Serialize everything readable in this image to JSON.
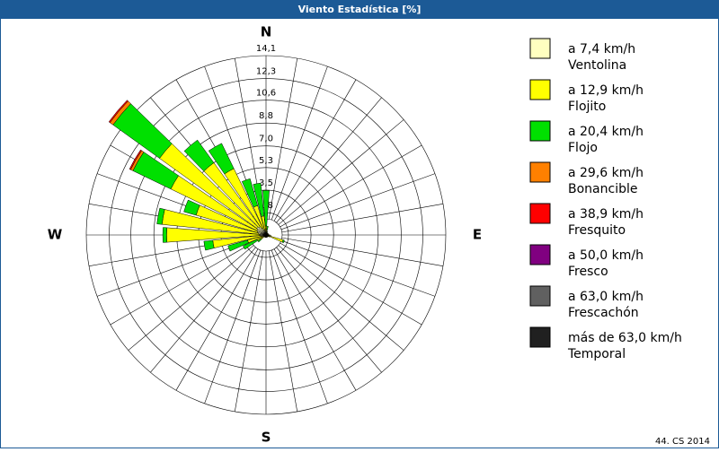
{
  "chart_data": {
    "type": "windrose",
    "title": "Viento Estadística [%]",
    "footer": "44. CS 2014",
    "categories": [
      "N",
      null,
      null,
      null,
      null,
      null,
      null,
      null,
      null,
      "E",
      null,
      null,
      null,
      null,
      null,
      null,
      null,
      null,
      "S",
      null,
      null,
      null,
      null,
      null,
      null,
      null,
      null,
      "W",
      null,
      null,
      null,
      null,
      null,
      null,
      null,
      null
    ],
    "rlim": [
      0,
      14.1
    ],
    "rticks": [
      {
        "value": 1.76,
        "label": "1,8"
      },
      {
        "value": 3.53,
        "label": "3,5"
      },
      {
        "value": 5.3,
        "label": "5,3"
      },
      {
        "value": 7.0,
        "label": "7,0"
      },
      {
        "value": 8.8,
        "label": "8,8"
      },
      {
        "value": 10.6,
        "label": "10,6"
      },
      {
        "value": 12.3,
        "label": "12,3"
      },
      {
        "value": 14.1,
        "label": "14,1"
      }
    ],
    "series": [
      {
        "name": "a 7,4 km/h",
        "description": "Ventolina",
        "color": "#ffffc0",
        "values": [
          0.2,
          0.1,
          0.1,
          0.1,
          0.1,
          0.1,
          0.1,
          0.1,
          0.1,
          0.1,
          0.1,
          0.2,
          0.1,
          0.1,
          0.1,
          0.1,
          0.1,
          0.1,
          0.1,
          0.1,
          0.1,
          0.1,
          0.1,
          0.2,
          0.2,
          0.3,
          0.4,
          0.5,
          0.6,
          0.7,
          0.8,
          0.9,
          0.8,
          0.6,
          0.4,
          0.3
        ]
      },
      {
        "name": "a 12,9 km/h",
        "description": "Flojito",
        "color": "#ffff00",
        "values": [
          0.5,
          0.3,
          0.1,
          0.1,
          0.1,
          0.1,
          0.1,
          0.1,
          0.1,
          0.2,
          0.3,
          1.2,
          0.2,
          0.1,
          0.1,
          0.1,
          0.1,
          0.1,
          0.1,
          0.1,
          0.1,
          0.1,
          0.1,
          0.3,
          0.6,
          1.2,
          3.8,
          7.3,
          7.6,
          5.0,
          7.5,
          9.4,
          6.2,
          5.2,
          2.0,
          1.2
        ]
      },
      {
        "name": "a 20,4 km/h",
        "description": "Flojo",
        "color": "#00e000",
        "values": [
          2.8,
          0.3,
          0.1,
          0,
          0,
          0,
          0,
          0,
          0,
          0,
          0,
          0.1,
          0,
          0,
          0,
          0,
          0,
          0,
          0,
          0,
          0,
          0,
          0,
          0.3,
          1.2,
          1.6,
          0.7,
          0.3,
          0.4,
          1.0,
          3.3,
          4.5,
          2.2,
          2.2,
          2.2,
          2.6
        ]
      },
      {
        "name": "a 29,6 km/h",
        "description": "Bonancible",
        "color": "#ff8000",
        "values": [
          0,
          0,
          0,
          0,
          0,
          0,
          0,
          0,
          0,
          0,
          0,
          0,
          0,
          0,
          0,
          0,
          0,
          0,
          0,
          0,
          0,
          0,
          0,
          0,
          0,
          0,
          0,
          0,
          0,
          0,
          0.2,
          0.3,
          0,
          0,
          0,
          0
        ]
      },
      {
        "name": "a 38,9 km/h",
        "description": "Fresquito",
        "color": "#ff0000",
        "values": [
          0,
          0,
          0,
          0,
          0,
          0,
          0,
          0,
          0,
          0,
          0,
          0,
          0,
          0,
          0,
          0,
          0,
          0,
          0,
          0,
          0,
          0,
          0,
          0,
          0,
          0,
          0,
          0,
          0,
          0,
          0.1,
          0.1,
          0,
          0,
          0,
          0
        ]
      },
      {
        "name": "a 50,0 km/h",
        "description": "Fresco",
        "color": "#800080",
        "values": [
          0,
          0,
          0,
          0,
          0,
          0,
          0,
          0,
          0,
          0,
          0,
          0,
          0,
          0,
          0,
          0,
          0,
          0,
          0,
          0,
          0,
          0,
          0,
          0,
          0,
          0,
          0,
          0,
          0,
          0,
          0,
          0,
          0,
          0,
          0,
          0
        ]
      },
      {
        "name": "a 63,0 km/h",
        "description": "Frescachón",
        "color": "#606060",
        "values": [
          0,
          0,
          0,
          0,
          0,
          0,
          0,
          0,
          0,
          0,
          0,
          0,
          0,
          0,
          0,
          0,
          0,
          0,
          0,
          0,
          0,
          0,
          0,
          0,
          0,
          0,
          0,
          0,
          0,
          0,
          0,
          0,
          0,
          0,
          0,
          0
        ]
      },
      {
        "name": "más de 63,0 km/h",
        "description": "Temporal",
        "color": "#202020",
        "values": [
          0,
          0,
          0,
          0,
          0,
          0,
          0,
          0,
          0,
          0,
          0,
          0,
          0,
          0,
          0,
          0,
          0,
          0,
          0,
          0,
          0,
          0,
          0,
          0,
          0,
          0,
          0,
          0,
          0,
          0,
          0,
          0,
          0,
          0,
          0,
          0
        ]
      }
    ]
  }
}
